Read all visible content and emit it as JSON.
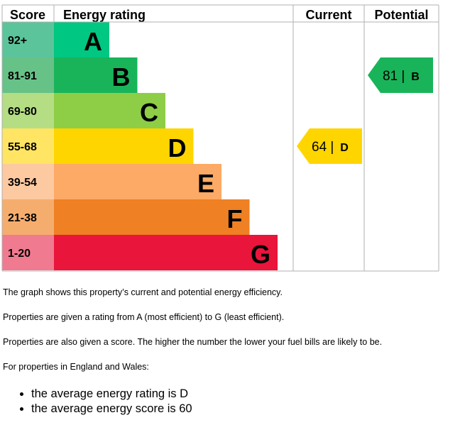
{
  "chart_data": {
    "type": "bar",
    "headers": {
      "score": "Score",
      "rating": "Energy rating",
      "current": "Current",
      "potential": "Potential"
    },
    "bands": [
      {
        "score_range": "92+",
        "letter": "A",
        "color": "#00c781"
      },
      {
        "score_range": "81-91",
        "letter": "B",
        "color": "#19b459"
      },
      {
        "score_range": "69-80",
        "letter": "C",
        "color": "#8dce46"
      },
      {
        "score_range": "55-68",
        "letter": "D",
        "color": "#ffd500"
      },
      {
        "score_range": "39-54",
        "letter": "E",
        "color": "#fcaa65"
      },
      {
        "score_range": "21-38",
        "letter": "F",
        "color": "#ef8023"
      },
      {
        "score_range": "1-20",
        "letter": "G",
        "color": "#e9153b"
      }
    ],
    "current": {
      "score": 64,
      "rating": "D",
      "label": "64 | D",
      "color": "#ffd500"
    },
    "potential": {
      "score": 81,
      "rating": "B",
      "label": "81 | B",
      "color": "#19b459"
    }
  },
  "text": {
    "paragraphs": [
      "The graph shows this property’s current and potential energy efficiency.",
      "Properties are given a rating from A (most efficient) to G (least efficient).",
      "Properties are also given a score. The higher the number the lower your fuel bills are likely to be.",
      "For properties in England and Wales:"
    ],
    "bullets": [
      "the average energy rating is D",
      "the average energy score is 60"
    ]
  }
}
